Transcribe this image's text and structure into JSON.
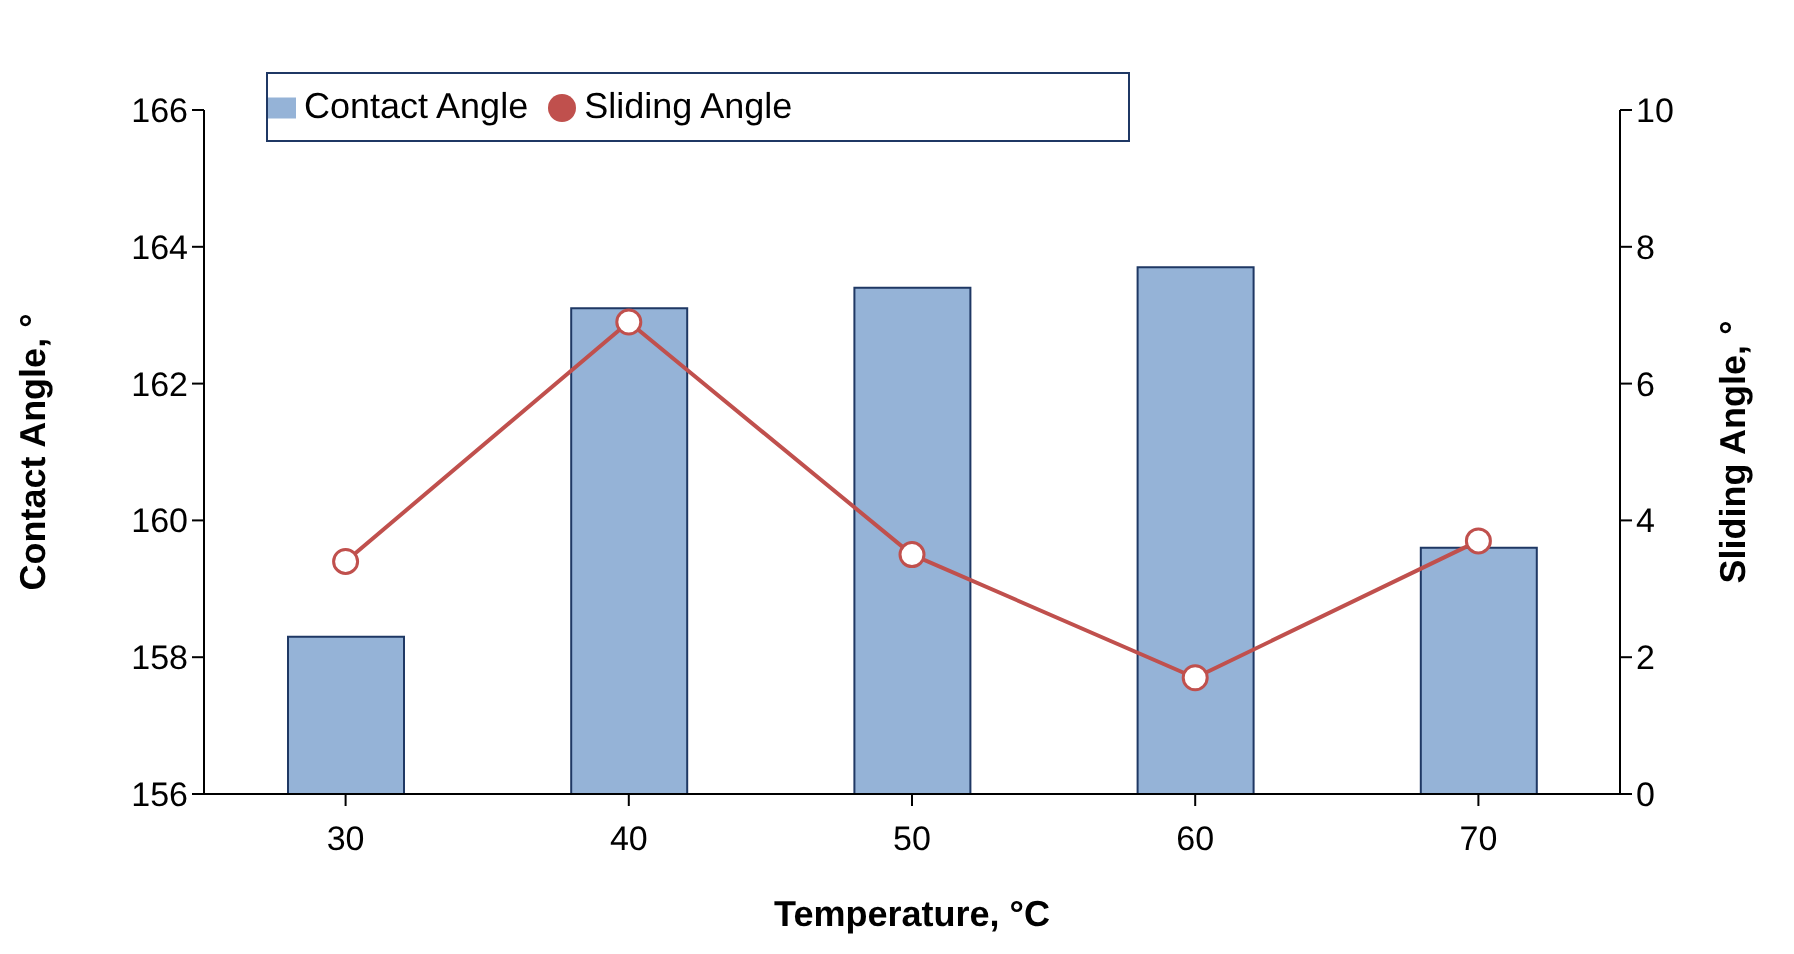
{
  "chart_data": {
    "type": "bar",
    "xlabel": "Temperature, °C",
    "ylabel": "Contact Angle, °",
    "y2label": "Sliding Angle, °",
    "categories": [
      "30",
      "40",
      "50",
      "60",
      "70"
    ],
    "series": [
      {
        "name": "Contact Angle",
        "color": "#95b3d7",
        "values": [
          158.3,
          163.1,
          163.4,
          163.7,
          159.6
        ]
      },
      {
        "name": "Sliding Angle",
        "type": "line",
        "axis": "y2",
        "color": "#c0504d",
        "marker": "circle",
        "values": [
          3.4,
          6.9,
          3.5,
          1.7,
          3.7
        ]
      }
    ],
    "ylim": [
      156,
      166
    ],
    "yticks": [
      156,
      158,
      160,
      162,
      164,
      166
    ],
    "y2lim": [
      0,
      10
    ],
    "y2ticks": [
      0,
      2,
      4,
      6,
      8,
      10
    ],
    "grid": false,
    "legend": "top left"
  }
}
